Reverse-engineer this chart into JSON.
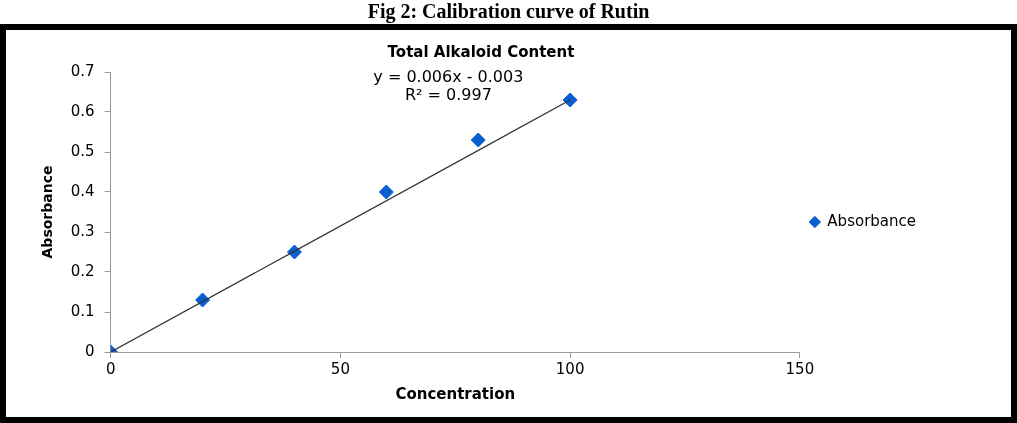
{
  "chart_data": {
    "type": "scatter",
    "title": "Fig 2: Calibration curve of Rutin",
    "subtitle": "Total Alkaloid Content",
    "xlabel": "Concentration",
    "ylabel": "Absorbance",
    "x": [
      0,
      20,
      40,
      60,
      80,
      100
    ],
    "series": [
      {
        "name": "Absorbance",
        "color": "#0a5fd0",
        "values": [
          0,
          0.13,
          0.25,
          0.4,
          0.53,
          0.63
        ]
      },
      {
        "type": "line",
        "color": "#333333",
        "x": [
          0,
          100
        ],
        "values": [
          0,
          0.63
        ],
        "marker": "none"
      }
    ],
    "annotations": [
      "y = 0.006x - 0.003",
      "R² = 0.997"
    ],
    "xlim": [
      0,
      150
    ],
    "xticks": [
      0,
      50,
      100,
      150
    ],
    "ylim": [
      0,
      0.7
    ],
    "yticks": [
      0,
      0.1,
      0.2,
      0.3,
      0.4,
      0.5,
      0.6,
      0.7
    ],
    "grid": false,
    "legend": "right",
    "marker": "diamond"
  }
}
